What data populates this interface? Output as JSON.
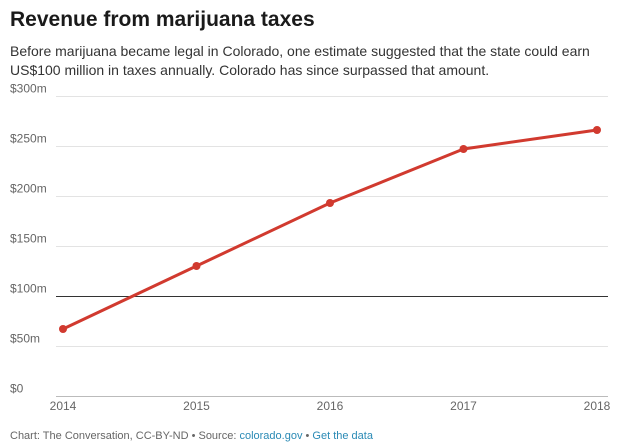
{
  "header": {
    "title": "Revenue from marijuana taxes",
    "subtitle": "Before marijuana became legal in Colorado, one estimate suggested that the state could earn US$100 million in taxes annually. Colorado has since surpassed that amount."
  },
  "footer": {
    "credit": "Chart: The Conversation, CC-BY-ND • Source: ",
    "source_link": "colorado.gov",
    "separator": " • ",
    "data_link": "Get the data"
  },
  "colors": {
    "line": "#d13a2f",
    "grid": "#e3e3e3",
    "reference_line": "#333333",
    "axis_text": "#666666",
    "link": "#2a8ab5"
  },
  "chart_data": {
    "type": "line",
    "title": "Revenue from marijuana taxes",
    "xlabel": "",
    "ylabel": "",
    "x": [
      "2014",
      "2015",
      "2016",
      "2017",
      "2018"
    ],
    "series": [
      {
        "values": [
          67,
          130,
          193,
          247,
          266
        ]
      }
    ],
    "ylim": [
      0,
      300
    ],
    "yticks": [
      0,
      50,
      100,
      150,
      200,
      250,
      300
    ],
    "ytick_labels": [
      "$0",
      "$50m",
      "$100m",
      "$150m",
      "$200m",
      "$250m",
      "$300m"
    ],
    "reference_line": 100,
    "grid": true,
    "legend": "none"
  }
}
